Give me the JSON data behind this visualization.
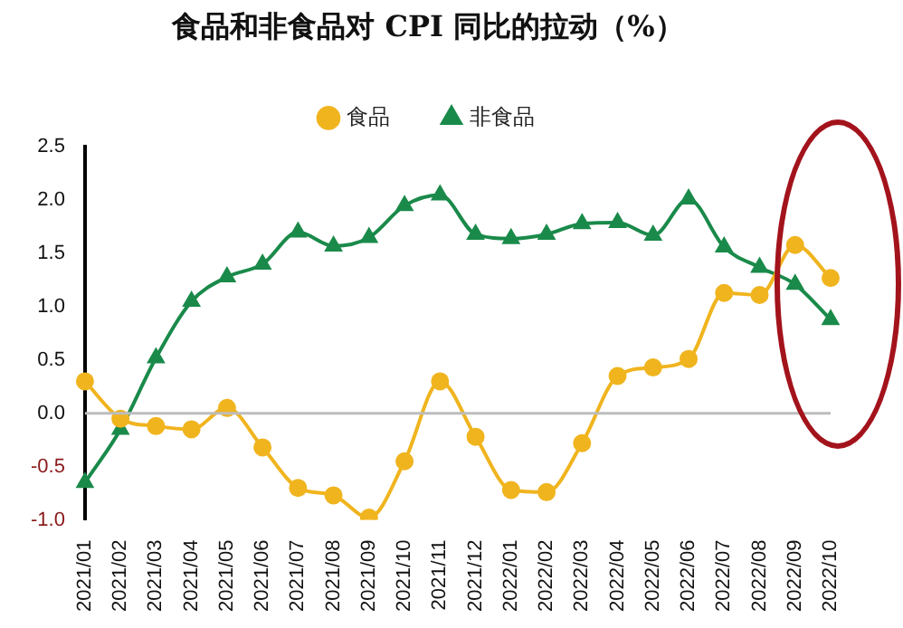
{
  "chart_data": {
    "type": "line",
    "title": "食品和非食品对 CPI 同比的拉动（%）",
    "categories": [
      "2021/01",
      "2021/02",
      "2021/03",
      "2021/04",
      "2021/05",
      "2021/06",
      "2021/07",
      "2021/08",
      "2021/09",
      "2021/10",
      "2021/11",
      "2021/12",
      "2022/01",
      "2022/02",
      "2022/03",
      "2022/04",
      "2022/05",
      "2022/06",
      "2022/07",
      "2022/08",
      "2022/09",
      "2022/10"
    ],
    "series": [
      {
        "name": "食品",
        "color": "#f0b41e",
        "marker": "circle",
        "values": [
          0.3,
          -0.05,
          -0.12,
          -0.15,
          0.05,
          -0.32,
          -0.7,
          -0.77,
          -0.98,
          -0.45,
          0.3,
          -0.22,
          -0.72,
          -0.74,
          -0.28,
          0.35,
          0.43,
          0.51,
          1.13,
          1.11,
          1.58,
          1.27
        ]
      },
      {
        "name": "非食品",
        "color": "#1a8a4a",
        "marker": "triangle",
        "values": [
          -0.65,
          -0.15,
          0.52,
          1.05,
          1.28,
          1.4,
          1.7,
          1.57,
          1.65,
          1.95,
          2.05,
          1.68,
          1.64,
          1.68,
          1.78,
          1.79,
          1.67,
          2.01,
          1.56,
          1.37,
          1.21,
          0.88
        ]
      }
    ],
    "ylim": [
      -1.0,
      2.5
    ],
    "yticks": [
      {
        "value": -1.0,
        "label": "-1.0"
      },
      {
        "value": -0.5,
        "label": "-0.5"
      },
      {
        "value": 0,
        "label": "0.0"
      },
      {
        "value": 0.5,
        "label": "0.5"
      },
      {
        "value": 1.0,
        "label": "1.0"
      },
      {
        "value": 1.5,
        "label": "1.5"
      },
      {
        "value": 2.0,
        "label": "2.0"
      },
      {
        "value": 2.5,
        "label": "2.5"
      }
    ],
    "ref_lines": [
      {
        "axis": "y",
        "value": 0,
        "color": "#bdbdbd"
      }
    ],
    "grid": false,
    "legend": "top",
    "line_style": "solid"
  }
}
